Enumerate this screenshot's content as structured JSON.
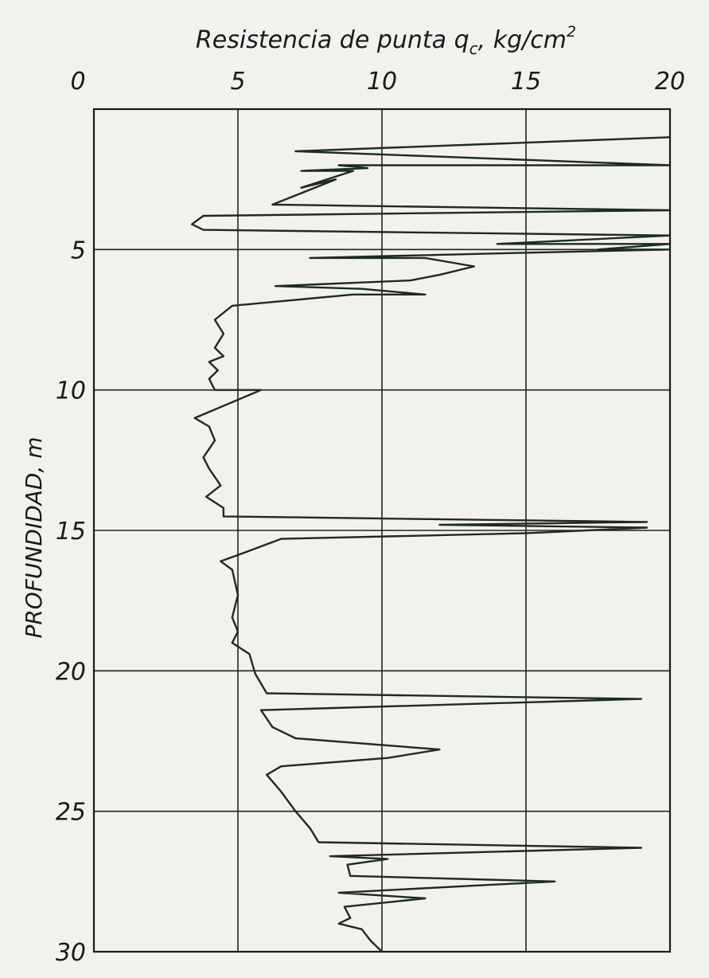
{
  "chart_data": {
    "type": "line",
    "title_main": "Resistencia de punta q",
    "title_subscript": "c",
    "title_unit_base": ", kg/cm",
    "title_unit_exponent": "2",
    "xlabel": "",
    "ylabel": "PROFUNDIDAD, m",
    "xlim": [
      0,
      20
    ],
    "ylim": [
      0,
      30
    ],
    "y_inverted": true,
    "x_ticks": [
      0,
      5,
      10,
      15,
      20
    ],
    "y_ticks": [
      5,
      10,
      15,
      20,
      25,
      30
    ],
    "grid": true,
    "legend": "none",
    "line_color": "#1e2a22",
    "series": [
      {
        "points": [
          [
            20,
            1.0
          ],
          [
            7,
            1.5
          ],
          [
            20,
            2.0
          ],
          [
            8.5,
            2.0
          ],
          [
            9.5,
            2.1
          ],
          [
            7.2,
            2.2
          ],
          [
            9.0,
            2.2
          ],
          [
            7.2,
            2.8
          ],
          [
            8.4,
            2.5
          ],
          [
            6.2,
            3.4
          ],
          [
            20,
            3.6
          ],
          [
            3.8,
            3.8
          ],
          [
            3.4,
            4.1
          ],
          [
            3.8,
            4.3
          ],
          [
            20,
            4.5
          ],
          [
            14.0,
            4.8
          ],
          [
            20,
            4.8
          ],
          [
            17.5,
            5.0
          ],
          [
            20,
            5.0
          ],
          [
            15.5,
            5.1
          ],
          [
            7.5,
            5.3
          ],
          [
            11.5,
            5.3
          ],
          [
            13.2,
            5.6
          ],
          [
            12.0,
            5.9
          ],
          [
            11.0,
            6.1
          ],
          [
            6.3,
            6.3
          ],
          [
            9.3,
            6.4
          ],
          [
            11.5,
            6.6
          ],
          [
            9.0,
            6.6
          ],
          [
            4.8,
            7.0
          ],
          [
            4.2,
            7.5
          ],
          [
            4.5,
            8.0
          ],
          [
            4.2,
            8.5
          ],
          [
            4.5,
            8.8
          ],
          [
            4.0,
            9.0
          ],
          [
            4.3,
            9.3
          ],
          [
            4.0,
            9.6
          ],
          [
            4.2,
            10.0
          ],
          [
            5.8,
            10.0
          ],
          [
            3.5,
            11.0
          ],
          [
            4.0,
            11.3
          ],
          [
            4.2,
            11.8
          ],
          [
            3.8,
            12.4
          ],
          [
            4.0,
            12.8
          ],
          [
            4.4,
            13.4
          ],
          [
            3.9,
            13.8
          ],
          [
            4.5,
            14.2
          ],
          [
            4.5,
            14.5
          ],
          [
            19.2,
            14.7
          ],
          [
            12.0,
            14.8
          ],
          [
            19.2,
            14.9
          ],
          [
            15.0,
            15.1
          ],
          [
            6.5,
            15.3
          ],
          [
            5.2,
            15.8
          ],
          [
            4.4,
            16.1
          ],
          [
            4.8,
            16.4
          ],
          [
            5.0,
            17.3
          ],
          [
            4.8,
            18.1
          ],
          [
            5.0,
            18.6
          ],
          [
            4.8,
            19.0
          ],
          [
            5.4,
            19.4
          ],
          [
            5.6,
            20.1
          ],
          [
            6.0,
            20.8
          ],
          [
            19.0,
            21.0
          ],
          [
            5.8,
            21.4
          ],
          [
            6.2,
            22.0
          ],
          [
            7.0,
            22.4
          ],
          [
            12.0,
            22.8
          ],
          [
            10.2,
            23.1
          ],
          [
            6.5,
            23.4
          ],
          [
            6.0,
            23.7
          ],
          [
            6.5,
            24.3
          ],
          [
            7.0,
            25.0
          ],
          [
            7.5,
            25.6
          ],
          [
            7.8,
            26.1
          ],
          [
            19.0,
            26.3
          ],
          [
            8.2,
            26.6
          ],
          [
            10.2,
            26.7
          ],
          [
            8.8,
            26.9
          ],
          [
            8.9,
            27.3
          ],
          [
            16.0,
            27.5
          ],
          [
            8.5,
            27.9
          ],
          [
            11.5,
            28.1
          ],
          [
            8.7,
            28.4
          ],
          [
            8.9,
            28.8
          ],
          [
            8.5,
            29.0
          ],
          [
            9.3,
            29.2
          ],
          [
            9.6,
            29.6
          ],
          [
            10.0,
            30.0
          ]
        ]
      }
    ]
  }
}
